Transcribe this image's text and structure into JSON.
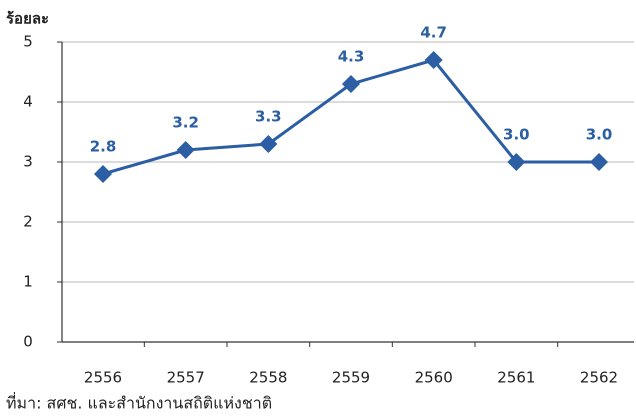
{
  "chart_data": {
    "type": "line",
    "y_label": "ร้อยละ",
    "source": "ที่มา: สศช. และสำนักงานสถิติแห่งชาติ",
    "categories": [
      "2556",
      "2557",
      "2558",
      "2559",
      "2560",
      "2561",
      "2562"
    ],
    "series": [
      {
        "name": "ร้อยละ",
        "color": "#2b5ea3",
        "values": [
          2.8,
          3.2,
          3.3,
          4.3,
          4.7,
          3.0,
          3.0
        ],
        "value_labels": [
          "2.8",
          "3.2",
          "3.3",
          "4.3",
          "4.7",
          "3.0",
          "3.0"
        ]
      }
    ],
    "ylim": [
      0,
      5
    ],
    "yticks": [
      0,
      1,
      2,
      3,
      4,
      5
    ],
    "grid": true
  }
}
